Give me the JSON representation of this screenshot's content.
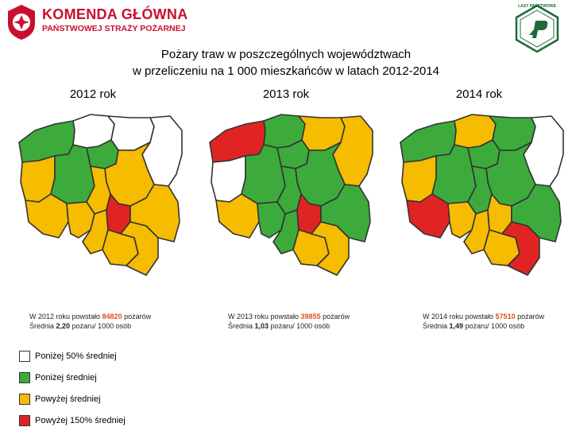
{
  "header": {
    "org_line1": "KOMENDA GŁÓWNA",
    "org_line2": "PAŃSTWOWEJ STRAŻY POŻARNEJ",
    "partner_logo_text": "LASY PAŃSTWOWE"
  },
  "title": {
    "line1": "Pożary traw w poszczególnych województwach",
    "line2": "w przeliczeniu na 1 000 mieszkańców w latach 2012-2014"
  },
  "colors": {
    "white": "#ffffff",
    "green": "#3cab3c",
    "yellow": "#f6bc00",
    "red": "#e02424"
  },
  "maps": [
    {
      "year_label": "2012 rok",
      "stat_line1_prefix": "W 2012 roku powstało ",
      "fires": "84820",
      "stat_line1_suffix": " pożarów",
      "stat_line2_prefix": "Średnia ",
      "average": "2,20",
      "stat_line2_suffix": " pożaru/ 1000 osób",
      "regions": {
        "zachodniopomorskie": "green",
        "pomorskie": "white",
        "warminsko_mazurskie": "white",
        "podlaskie": "white",
        "lubuskie": "yellow",
        "wielkopolskie": "green",
        "kujawsko_pomorskie": "green",
        "mazowieckie": "yellow",
        "lodzkie": "yellow",
        "dolnoslaskie": "yellow",
        "opolskie": "yellow",
        "slaskie": "yellow",
        "malopolskie": "yellow",
        "swietokrzyskie": "red",
        "podkarpackie": "yellow",
        "lubelskie": "yellow"
      }
    },
    {
      "year_label": "2013 rok",
      "stat_line1_prefix": "W 2013 roku powstało ",
      "fires": "39855",
      "stat_line1_suffix": " pożarów",
      "stat_line2_prefix": "Średnia ",
      "average": "1,03",
      "stat_line2_suffix": " pożaru/ 1000 osób",
      "regions": {
        "zachodniopomorskie": "red",
        "pomorskie": "green",
        "warminsko_mazurskie": "yellow",
        "podlaskie": "yellow",
        "lubuskie": "white",
        "wielkopolskie": "green",
        "kujawsko_pomorskie": "green",
        "mazowieckie": "green",
        "lodzkie": "green",
        "dolnoslaskie": "yellow",
        "opolskie": "green",
        "slaskie": "green",
        "malopolskie": "yellow",
        "swietokrzyskie": "red",
        "podkarpackie": "yellow",
        "lubelskie": "green"
      }
    },
    {
      "year_label": "2014 rok",
      "stat_line1_prefix": "W 2014 roku powstało ",
      "fires": "57510",
      "stat_line1_suffix": " pożarów",
      "stat_line2_prefix": "Średnia ",
      "average": "1,49",
      "stat_line2_suffix": " pożaru/ 1000 osób",
      "regions": {
        "zachodniopomorskie": "green",
        "pomorskie": "yellow",
        "warminsko_mazurskie": "green",
        "podlaskie": "white",
        "lubuskie": "yellow",
        "wielkopolskie": "green",
        "kujawsko_pomorskie": "green",
        "mazowieckie": "green",
        "lodzkie": "green",
        "dolnoslaskie": "red",
        "opolskie": "yellow",
        "slaskie": "yellow",
        "malopolskie": "yellow",
        "swietokrzyskie": "yellow",
        "podkarpackie": "red",
        "lubelskie": "green"
      }
    }
  ],
  "legend": [
    {
      "color": "white",
      "label": "Poniżej 50% średniej"
    },
    {
      "color": "green",
      "label": "Poniżej średniej"
    },
    {
      "color": "yellow",
      "label": "Powyżej średniej"
    },
    {
      "color": "red",
      "label": "Powyżej 150% średniej"
    }
  ]
}
